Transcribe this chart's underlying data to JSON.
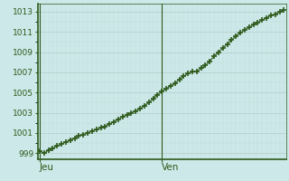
{
  "y_values": [
    999.2,
    999.0,
    999.3,
    999.5,
    999.7,
    999.9,
    1000.1,
    1000.3,
    1000.5,
    1000.7,
    1000.85,
    1001.0,
    1001.2,
    1001.35,
    1001.5,
    1001.65,
    1001.9,
    1002.1,
    1002.35,
    1002.6,
    1002.8,
    1003.0,
    1003.15,
    1003.4,
    1003.7,
    1004.0,
    1004.4,
    1004.8,
    1005.1,
    1005.4,
    1005.65,
    1005.9,
    1006.3,
    1006.6,
    1006.9,
    1007.05,
    1007.1,
    1007.4,
    1007.7,
    1008.1,
    1008.6,
    1009.0,
    1009.4,
    1009.8,
    1010.2,
    1010.6,
    1010.9,
    1011.2,
    1011.45,
    1011.7,
    1011.95,
    1012.15,
    1012.4,
    1012.6,
    1012.75,
    1012.95,
    1013.15
  ],
  "n_points": 57,
  "jeu_idx": 0,
  "ven_idx": 28,
  "x_tick_positions": [
    0,
    28
  ],
  "x_tick_labels": [
    "Jeu",
    "Ven"
  ],
  "y_ticks": [
    999,
    1001,
    1003,
    1005,
    1007,
    1009,
    1011,
    1013
  ],
  "ylim": [
    998.4,
    1013.8
  ],
  "xlim_left": -0.5,
  "xlim_right": 56.5,
  "line_color": "#2d5a1b",
  "marker_color": "#2d5a1b",
  "bg_color": "#cce8e8",
  "grid_color_major": "#b8d0d0",
  "grid_color_minor": "#c4dcdc",
  "spine_color": "#2d5a1b",
  "tick_label_color": "#2d5a1b",
  "marker": "+",
  "marker_size": 4.5,
  "marker_lw": 1.2,
  "line_width": 0.8,
  "font_size_y": 6.5,
  "font_size_x": 7.5
}
